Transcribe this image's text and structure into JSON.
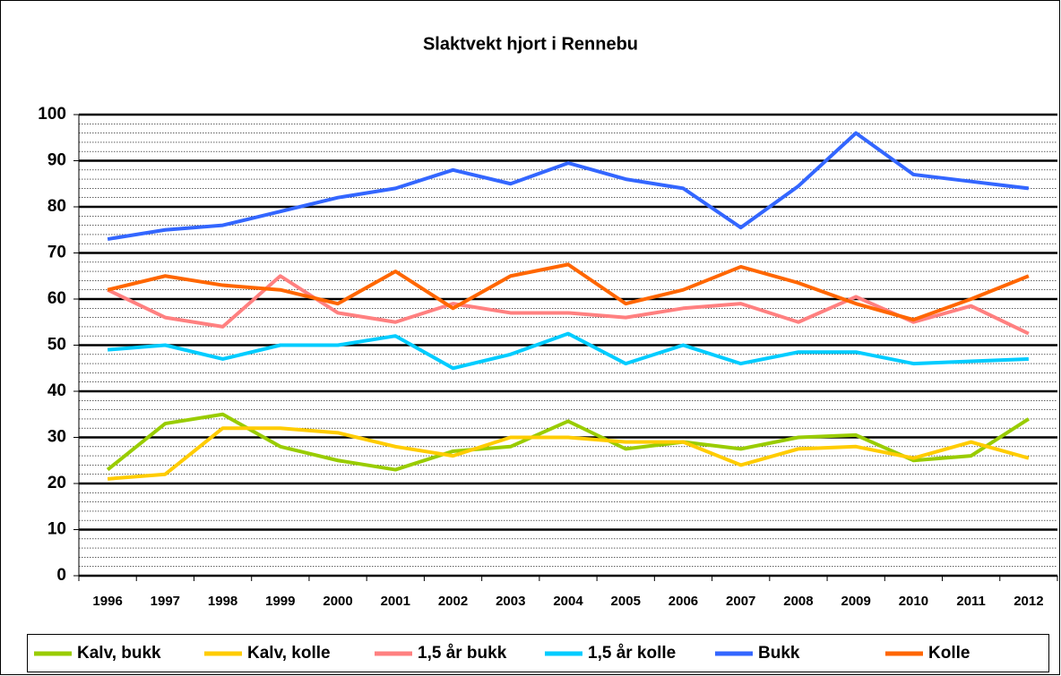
{
  "chart_data": {
    "type": "line",
    "title": "Slaktvekt hjort i Rennebu",
    "categories": [
      "1996",
      "1997",
      "1998",
      "1999",
      "2000",
      "2001",
      "2002",
      "2003",
      "2004",
      "2005",
      "2006",
      "2007",
      "2008",
      "2009",
      "2010",
      "2011",
      "2012"
    ],
    "series": [
      {
        "name": "Kalv, bukk",
        "color": "#99cc00",
        "values": [
          23,
          33,
          35,
          28,
          25,
          23,
          27,
          28,
          33.5,
          27.5,
          29,
          27.5,
          30,
          30.5,
          25,
          26,
          34
        ]
      },
      {
        "name": "Kalv, kolle",
        "color": "#ffcc00",
        "values": [
          21,
          22,
          32,
          32,
          31,
          28,
          26,
          30,
          30,
          29,
          29,
          24,
          27.5,
          28,
          25.5,
          29,
          25.5
        ]
      },
      {
        "name": "1,5 år bukk",
        "color": "#ff8080",
        "values": [
          62,
          56,
          54,
          65,
          57,
          55,
          59,
          57,
          57,
          56,
          58,
          59,
          55,
          60.5,
          55,
          58.5,
          52.5
        ]
      },
      {
        "name": "1,5 år kolle",
        "color": "#00ccff",
        "values": [
          49,
          50,
          47,
          50,
          50,
          52,
          45,
          48,
          52.5,
          46,
          50,
          46,
          48.5,
          48.5,
          46,
          46.5,
          47
        ]
      },
      {
        "name": "Bukk",
        "color": "#3366ff",
        "values": [
          73,
          75,
          76,
          79,
          82,
          84,
          88,
          85,
          89.5,
          86,
          84,
          75.5,
          84.5,
          96,
          87,
          85.5,
          84
        ]
      },
      {
        "name": "Kolle",
        "color": "#ff6600",
        "values": [
          62,
          65,
          63,
          62,
          59,
          66,
          58,
          65,
          67.5,
          59,
          62,
          67,
          63.5,
          59,
          55.5,
          60,
          65
        ]
      }
    ],
    "ylim": [
      0,
      100
    ],
    "yticks": [
      0,
      10,
      20,
      30,
      40,
      50,
      60,
      70,
      80,
      90,
      100
    ],
    "grid": true,
    "legend": "bottom"
  }
}
